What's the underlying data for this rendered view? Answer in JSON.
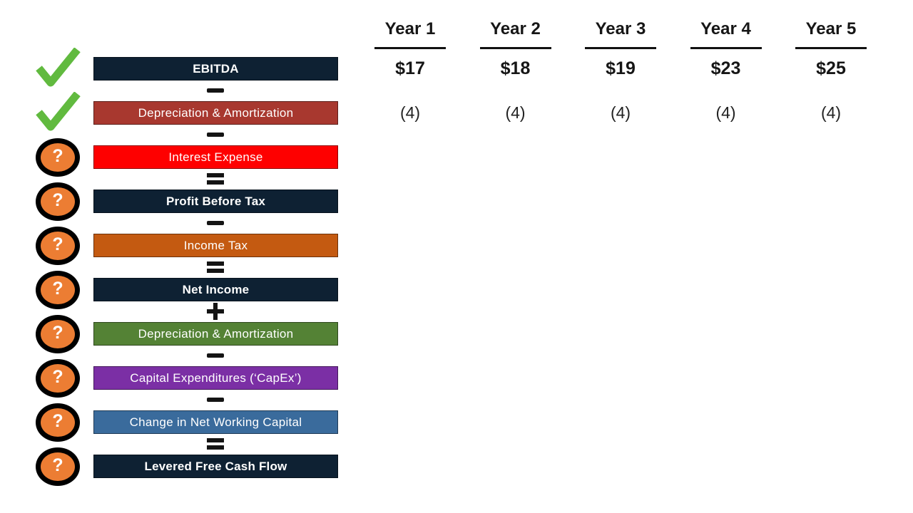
{
  "slide": {
    "background": "#FFFFFF",
    "operator_color": "#141414"
  },
  "flow": {
    "icons": {
      "check_color": "#61BA3F",
      "question_fill": "#EC7D33",
      "question_ring": "#000000",
      "question_mark": "?"
    },
    "rows": [
      {
        "label": "EBITDA",
        "color": "#0E2133",
        "text_bold": true,
        "icon": "check",
        "operator_before": null
      },
      {
        "label": "Depreciation & Amortization",
        "color": "#A8382F",
        "text_bold": false,
        "icon": "check",
        "operator_before": "minus"
      },
      {
        "label": "Interest Expense",
        "color": "#FE0000",
        "text_bold": false,
        "icon": "question",
        "operator_before": "minus"
      },
      {
        "label": "Profit Before Tax",
        "color": "#0E2133",
        "text_bold": true,
        "icon": "question",
        "operator_before": "equals"
      },
      {
        "label": "Income Tax",
        "color": "#C45A11",
        "text_bold": false,
        "icon": "question",
        "operator_before": "minus"
      },
      {
        "label": "Net Income",
        "color": "#0E2133",
        "text_bold": true,
        "icon": "question",
        "operator_before": "equals"
      },
      {
        "label": "Depreciation & Amortization",
        "color": "#548235",
        "text_bold": false,
        "icon": "question",
        "operator_before": "plus"
      },
      {
        "label": "Capital Expenditures (‘CapEx’)",
        "color": "#7B2FA5",
        "text_bold": false,
        "icon": "question",
        "operator_before": "minus"
      },
      {
        "label": "Change in Net Working Capital",
        "color": "#3A6B9C",
        "text_bold": false,
        "icon": "question",
        "operator_before": "minus"
      },
      {
        "label": "Levered Free Cash Flow",
        "color": "#0E2133",
        "text_bold": true,
        "icon": "question",
        "operator_before": "equals"
      }
    ]
  },
  "table": {
    "columns": [
      {
        "header": "Year 1",
        "ebitda": "$17",
        "d_and_a": "(4)"
      },
      {
        "header": "Year 2",
        "ebitda": "$18",
        "d_and_a": "(4)"
      },
      {
        "header": "Year 3",
        "ebitda": "$19",
        "d_and_a": "(4)"
      },
      {
        "header": "Year 4",
        "ebitda": "$23",
        "d_and_a": "(4)"
      },
      {
        "header": "Year 5",
        "ebitda": "$25",
        "d_and_a": "(4)"
      }
    ]
  }
}
